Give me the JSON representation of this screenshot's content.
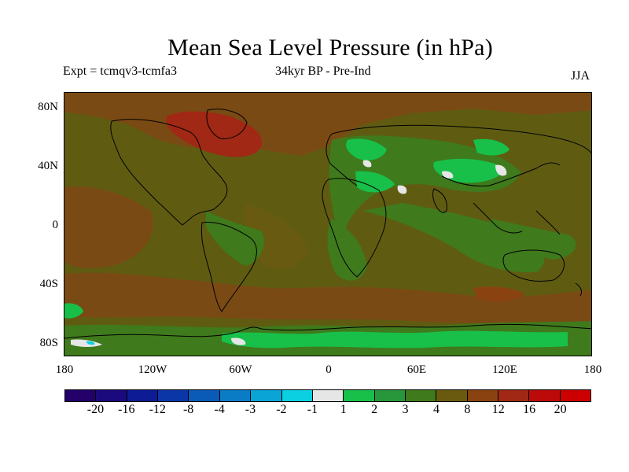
{
  "title": "Mean Sea Level Pressure (in hPa)",
  "subtitle_left": "Expt = tcmqv3-tcmfa3",
  "subtitle_center": "34kyr BP - Pre-Ind",
  "season": "JJA",
  "lat_ticks": [
    "80N",
    "40N",
    "0",
    "40S",
    "80S"
  ],
  "lon_ticks": [
    "180",
    "120W",
    "60W",
    "0",
    "60E",
    "120E",
    "180"
  ],
  "colorbar": {
    "labels": [
      "-20",
      "-16",
      "-12",
      "-8",
      "-4",
      "-3",
      "-2",
      "-1",
      "1",
      "2",
      "3",
      "4",
      "8",
      "12",
      "16",
      "20"
    ],
    "colors": [
      "#24006a",
      "#1a0a7e",
      "#0d1c94",
      "#0a36a8",
      "#0a5ab8",
      "#0a7cc6",
      "#0aa4d6",
      "#0ad0e2",
      "#e6e6e6",
      "#18c04a",
      "#28963a",
      "#3f7a1c",
      "#6a5a10",
      "#8a4210",
      "#a02814",
      "#bc0a0a",
      "#cc0000"
    ]
  },
  "map": {
    "colors": {
      "background": "#5f5c12",
      "green_mid": "#3f7a1c",
      "green_bright": "#18c04a",
      "brown": "#7a4a14",
      "red": "#a02814",
      "white": "#e6e6e6",
      "cyan": "#0ad0e2"
    }
  }
}
